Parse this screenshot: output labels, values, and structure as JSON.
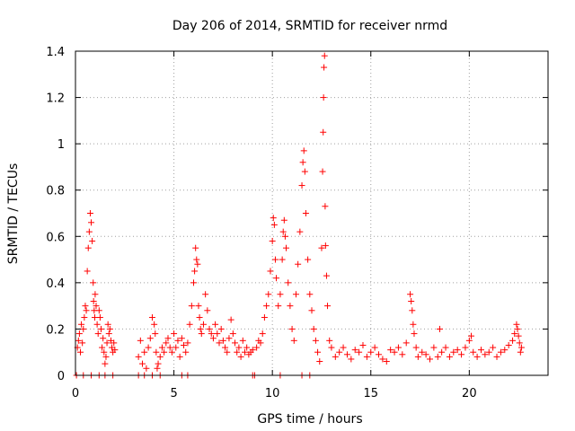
{
  "chart_data": {
    "type": "scatter",
    "title": "Day 206 of 2014, SRMTID for receiver nrmd",
    "xlabel": "GPS time / hours",
    "ylabel": "SRMTID / TECUs",
    "xlim": [
      0,
      24
    ],
    "ylim": [
      0,
      1.4
    ],
    "xticks": [
      0,
      5,
      10,
      15,
      20
    ],
    "yticks": [
      0,
      0.2,
      0.4,
      0.6,
      0.8,
      1,
      1.2,
      1.4
    ],
    "xtick_labels": [
      "0",
      "5",
      "10",
      "15",
      "20"
    ],
    "ytick_labels": [
      "0",
      "0.2",
      "0.4",
      "0.6",
      "0.8",
      "1",
      "1.2",
      "1.4"
    ],
    "grid": true,
    "marker": "+",
    "color": "#ff0000",
    "series": [
      {
        "name": "SRMTID",
        "x": [
          0.1,
          0.15,
          0.2,
          0.25,
          0.3,
          0.35,
          0.4,
          0.45,
          0.5,
          0.55,
          0.6,
          0.65,
          0.7,
          0.75,
          0.8,
          0.85,
          0.9,
          0.92,
          0.95,
          0.98,
          1.0,
          1.05,
          1.1,
          1.15,
          1.2,
          1.25,
          1.3,
          1.35,
          1.4,
          1.45,
          1.5,
          1.55,
          1.6,
          1.65,
          1.7,
          1.75,
          1.8,
          1.85,
          1.9,
          1.95,
          2.0,
          3.2,
          3.3,
          3.4,
          3.5,
          3.6,
          3.7,
          3.8,
          3.9,
          4.0,
          4.05,
          4.1,
          4.15,
          4.2,
          4.3,
          4.4,
          4.5,
          4.6,
          4.7,
          4.8,
          4.9,
          5.0,
          5.1,
          5.2,
          5.3,
          5.4,
          5.5,
          5.6,
          5.7,
          5.8,
          5.9,
          6.0,
          6.05,
          6.1,
          6.15,
          6.2,
          6.25,
          6.3,
          6.35,
          6.4,
          6.5,
          6.6,
          6.7,
          6.8,
          6.9,
          7.0,
          7.1,
          7.2,
          7.3,
          7.4,
          7.5,
          7.6,
          7.7,
          7.8,
          7.9,
          8.0,
          8.1,
          8.2,
          8.3,
          8.4,
          8.5,
          8.6,
          8.7,
          8.8,
          8.9,
          9.0,
          9.2,
          9.3,
          9.4,
          9.5,
          9.6,
          9.7,
          9.8,
          9.9,
          10.0,
          10.05,
          10.1,
          10.15,
          10.2,
          10.3,
          10.4,
          10.5,
          10.55,
          10.6,
          10.65,
          10.7,
          10.8,
          10.9,
          11.0,
          11.1,
          11.2,
          11.3,
          11.4,
          11.5,
          11.55,
          11.6,
          11.65,
          11.7,
          11.8,
          11.9,
          12.0,
          12.1,
          12.2,
          12.3,
          12.4,
          12.5,
          12.55,
          12.58,
          12.6,
          12.62,
          12.65,
          12.68,
          12.7,
          12.75,
          12.8,
          12.9,
          13.0,
          13.2,
          13.4,
          13.6,
          13.8,
          14.0,
          14.2,
          14.4,
          14.6,
          14.8,
          15.0,
          15.2,
          15.4,
          15.6,
          15.8,
          16.0,
          16.2,
          16.4,
          16.6,
          16.8,
          17.0,
          17.05,
          17.1,
          17.15,
          17.2,
          17.3,
          17.4,
          17.6,
          17.8,
          18.0,
          18.2,
          18.4,
          18.5,
          18.6,
          18.8,
          19.0,
          19.2,
          19.4,
          19.6,
          19.8,
          20.0,
          20.1,
          20.2,
          20.4,
          20.6,
          20.8,
          21.0,
          21.2,
          21.4,
          21.6,
          21.8,
          22.0,
          22.2,
          22.3,
          22.4,
          22.45,
          22.5,
          22.55,
          22.6,
          22.65,
          0.05,
          0.4,
          0.8,
          1.2,
          1.5,
          1.9,
          3.2,
          3.5,
          3.9,
          4.3,
          5.4,
          5.7,
          9.0,
          9.1,
          10.4,
          11.5,
          11.9
        ],
        "y": [
          0.12,
          0.15,
          0.18,
          0.1,
          0.22,
          0.14,
          0.2,
          0.25,
          0.3,
          0.28,
          0.45,
          0.55,
          0.62,
          0.7,
          0.66,
          0.58,
          0.4,
          0.32,
          0.28,
          0.25,
          0.35,
          0.3,
          0.22,
          0.18,
          0.28,
          0.25,
          0.2,
          0.12,
          0.16,
          0.1,
          0.05,
          0.08,
          0.14,
          0.22,
          0.18,
          0.2,
          0.15,
          0.12,
          0.1,
          0.14,
          0.11,
          0.08,
          0.15,
          0.05,
          0.1,
          0.03,
          0.12,
          0.16,
          0.25,
          0.22,
          0.18,
          0.1,
          0.03,
          0.05,
          0.08,
          0.12,
          0.1,
          0.14,
          0.16,
          0.12,
          0.1,
          0.18,
          0.12,
          0.15,
          0.08,
          0.16,
          0.13,
          0.1,
          0.14,
          0.22,
          0.3,
          0.4,
          0.45,
          0.55,
          0.5,
          0.48,
          0.3,
          0.25,
          0.2,
          0.18,
          0.22,
          0.35,
          0.28,
          0.2,
          0.18,
          0.16,
          0.22,
          0.18,
          0.14,
          0.2,
          0.15,
          0.12,
          0.1,
          0.16,
          0.24,
          0.18,
          0.14,
          0.1,
          0.12,
          0.08,
          0.15,
          0.1,
          0.12,
          0.09,
          0.1,
          0.11,
          0.12,
          0.15,
          0.14,
          0.18,
          0.25,
          0.3,
          0.35,
          0.45,
          0.58,
          0.68,
          0.65,
          0.5,
          0.42,
          0.3,
          0.35,
          0.5,
          0.62,
          0.67,
          0.6,
          0.55,
          0.4,
          0.3,
          0.2,
          0.15,
          0.35,
          0.48,
          0.62,
          0.82,
          0.92,
          0.97,
          0.88,
          0.7,
          0.5,
          0.35,
          0.28,
          0.2,
          0.15,
          0.1,
          0.06,
          0.55,
          0.88,
          1.05,
          1.2,
          1.33,
          1.38,
          0.73,
          0.56,
          0.43,
          0.3,
          0.15,
          0.12,
          0.08,
          0.1,
          0.12,
          0.09,
          0.07,
          0.11,
          0.1,
          0.13,
          0.08,
          0.1,
          0.12,
          0.09,
          0.07,
          0.06,
          0.11,
          0.1,
          0.12,
          0.09,
          0.14,
          0.35,
          0.32,
          0.28,
          0.22,
          0.18,
          0.12,
          0.08,
          0.1,
          0.09,
          0.07,
          0.12,
          0.08,
          0.2,
          0.1,
          0.12,
          0.08,
          0.1,
          0.11,
          0.09,
          0.12,
          0.15,
          0.17,
          0.1,
          0.08,
          0.11,
          0.09,
          0.1,
          0.12,
          0.08,
          0.1,
          0.11,
          0.13,
          0.15,
          0.18,
          0.22,
          0.2,
          0.17,
          0.14,
          0.1,
          0.12,
          0,
          0,
          0,
          0,
          0,
          0,
          0,
          0,
          0,
          0,
          0,
          0,
          0,
          0,
          0,
          0,
          0
        ]
      }
    ]
  }
}
